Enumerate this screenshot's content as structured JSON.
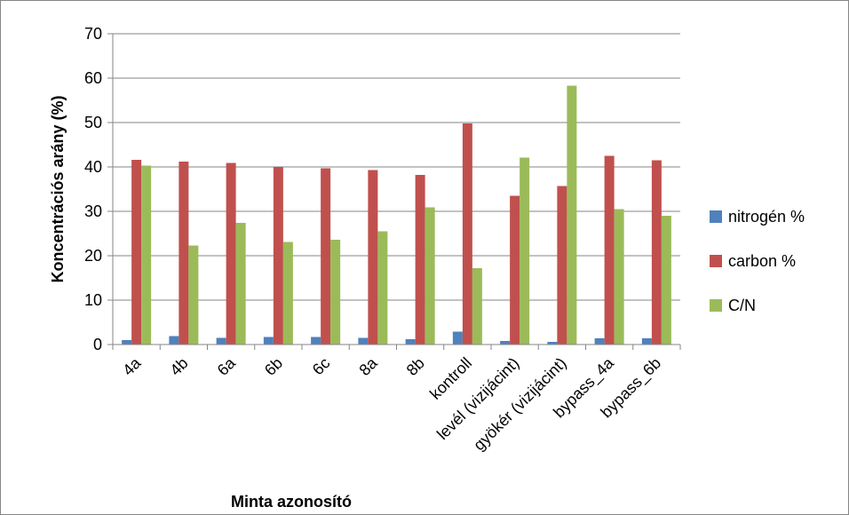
{
  "chart_data": {
    "type": "bar",
    "title": "",
    "xlabel": "Minta azonosító",
    "ylabel": "Koncentrációs arány (%)",
    "ylim": [
      0,
      70
    ],
    "yticks": [
      0,
      10,
      20,
      30,
      40,
      50,
      60,
      70
    ],
    "grid": true,
    "legend_position": "right",
    "categories": [
      "4a",
      "4b",
      "6a",
      "6b",
      "6c",
      "8a",
      "8b",
      "kontroll",
      "levél (vizijácint)",
      "gyökér (vizijácint)",
      "bypass_4a",
      "bypass_6b"
    ],
    "series": [
      {
        "name": "nitrogén %",
        "color": "#4F81BD",
        "values": [
          1.0,
          1.9,
          1.5,
          1.7,
          1.7,
          1.5,
          1.2,
          2.9,
          0.8,
          0.6,
          1.4,
          1.4
        ]
      },
      {
        "name": "carbon %",
        "color": "#C0504D",
        "values": [
          41.6,
          41.2,
          40.9,
          40.0,
          39.7,
          39.3,
          38.2,
          49.8,
          33.5,
          35.7,
          42.5,
          41.5
        ]
      },
      {
        "name": "C/N",
        "color": "#9BBB59",
        "values": [
          40.3,
          22.3,
          27.4,
          23.1,
          23.6,
          25.5,
          30.9,
          17.2,
          42.1,
          58.3,
          30.5,
          29.0
        ]
      }
    ]
  }
}
